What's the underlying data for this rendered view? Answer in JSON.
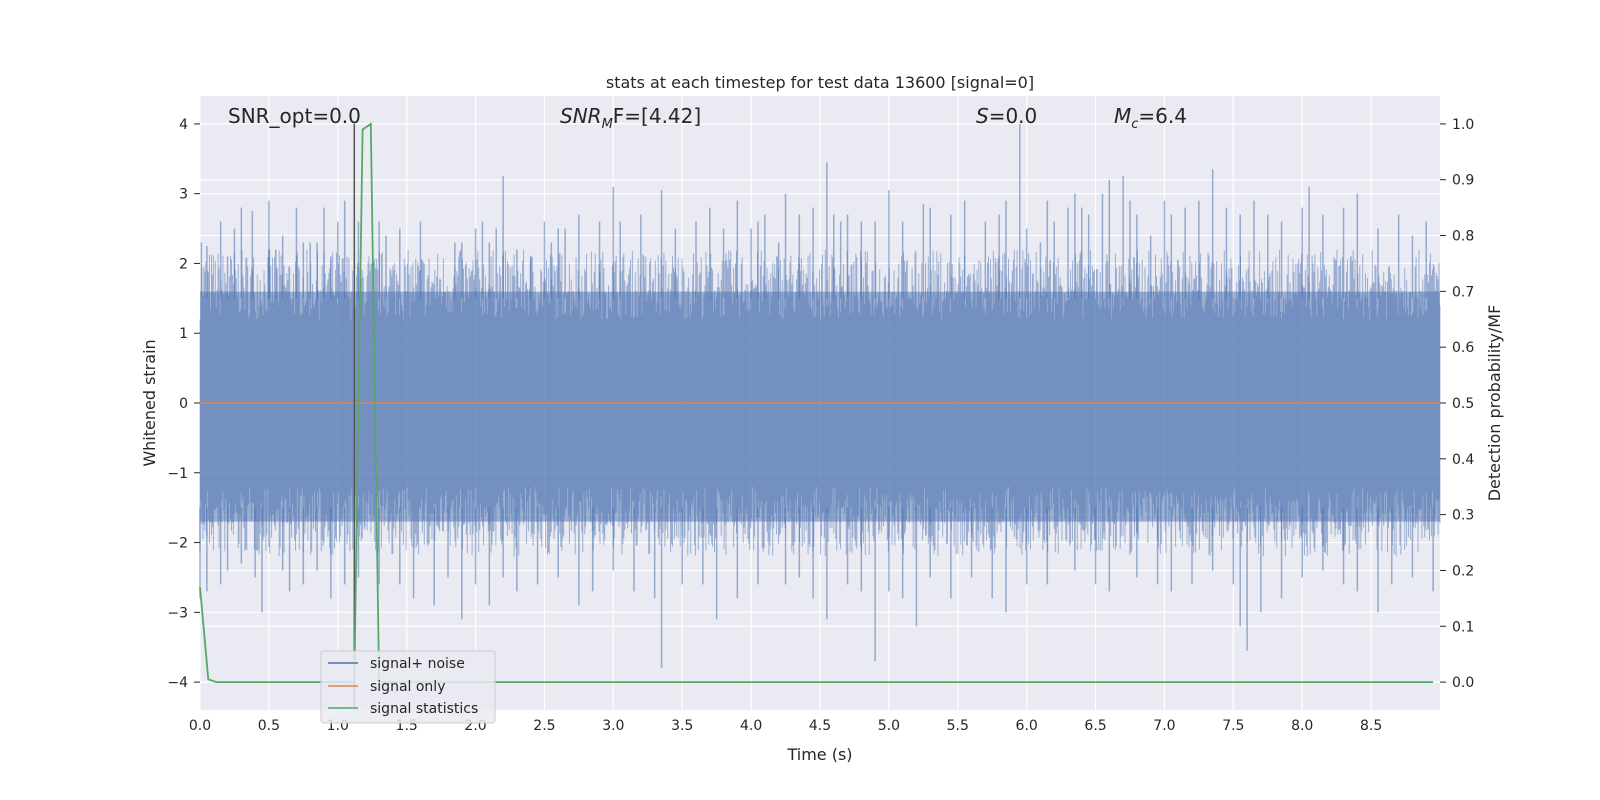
{
  "chart_data": {
    "type": "line",
    "title": "stats at each timestep for test data 13600 [signal=0]",
    "xlabel": "Time (s)",
    "ylabel": "Whitened strain",
    "y2label": "Detection probability/MF",
    "xlim": [
      0.0,
      9.0
    ],
    "ylim": [
      -4.4,
      4.4
    ],
    "y2lim": [
      -0.05,
      1.05
    ],
    "x_ticks": [
      "0.0",
      "0.5",
      "1.0",
      "1.5",
      "2.0",
      "2.5",
      "3.0",
      "3.5",
      "4.0",
      "4.5",
      "5.0",
      "5.5",
      "6.0",
      "6.5",
      "7.0",
      "7.5",
      "8.0",
      "8.5"
    ],
    "y_ticks": [
      "4",
      "3",
      "2",
      "1",
      "0",
      "−1",
      "−2",
      "−3",
      "−4"
    ],
    "y2_ticks": [
      "1.0",
      "0.9",
      "0.8",
      "0.7",
      "0.6",
      "0.5",
      "0.4",
      "0.3",
      "0.2",
      "0.1",
      "0.0"
    ],
    "grid": true,
    "legend_position": "lower-left",
    "annotations": {
      "snr_opt": "SNR_opt=0.0",
      "snr_mf_main": "SNR",
      "snr_mf_sub": "M",
      "snr_mf_rest": "F=[4.42]",
      "s_italic": "S",
      "s_rest": "=0.0",
      "mc_main": "M",
      "mc_sub": "c",
      "mc_rest": "=6.4"
    },
    "series": [
      {
        "name": "signal+ noise",
        "color": "#4c72b0",
        "envelope_description": "noise fluctuates between about -2 and 2, with spikes reaching about 4 and -3.8",
        "spikes_up": [
          [
            0.01,
            2.3
          ],
          [
            0.05,
            2.25
          ],
          [
            0.15,
            2.6
          ],
          [
            0.2,
            2.1
          ],
          [
            0.25,
            2.5
          ],
          [
            0.3,
            2.8
          ],
          [
            0.38,
            2.75
          ],
          [
            0.5,
            2.2
          ],
          [
            0.5,
            2.9
          ],
          [
            0.55,
            2.2
          ],
          [
            0.6,
            2.4
          ],
          [
            0.7,
            2.8
          ],
          [
            0.75,
            2.3
          ],
          [
            0.8,
            2.3
          ],
          [
            0.85,
            2.3
          ],
          [
            0.9,
            2.8
          ],
          [
            0.95,
            2.1
          ],
          [
            1.0,
            2.6
          ],
          [
            1.05,
            2.9
          ],
          [
            1.15,
            2.6
          ],
          [
            1.3,
            2.6
          ],
          [
            1.35,
            2.4
          ],
          [
            1.45,
            2.5
          ],
          [
            1.6,
            2.6
          ],
          [
            1.85,
            2.3
          ],
          [
            1.9,
            2.3
          ],
          [
            2.0,
            2.5
          ],
          [
            2.05,
            2.6
          ],
          [
            2.1,
            2.3
          ],
          [
            2.15,
            2.5
          ],
          [
            2.2,
            3.25
          ],
          [
            2.3,
            2.2
          ],
          [
            2.4,
            2.1
          ],
          [
            2.5,
            2.6
          ],
          [
            2.55,
            2.3
          ],
          [
            2.6,
            2.5
          ],
          [
            2.65,
            2.5
          ],
          [
            2.75,
            2.7
          ],
          [
            2.9,
            2.6
          ],
          [
            3.0,
            3.1
          ],
          [
            3.05,
            2.6
          ],
          [
            3.2,
            2.7
          ],
          [
            3.35,
            3.05
          ],
          [
            3.45,
            2.5
          ],
          [
            3.6,
            2.6
          ],
          [
            3.7,
            2.8
          ],
          [
            3.8,
            2.5
          ],
          [
            3.9,
            2.9
          ],
          [
            4.0,
            2.5
          ],
          [
            4.05,
            2.6
          ],
          [
            4.1,
            2.7
          ],
          [
            4.2,
            2.3
          ],
          [
            4.25,
            3.0
          ],
          [
            4.35,
            2.7
          ],
          [
            4.45,
            2.8
          ],
          [
            4.55,
            3.45
          ],
          [
            4.6,
            2.7
          ],
          [
            4.65,
            2.6
          ],
          [
            4.7,
            2.7
          ],
          [
            4.8,
            2.6
          ],
          [
            4.9,
            2.6
          ],
          [
            5.0,
            3.05
          ],
          [
            5.1,
            2.6
          ],
          [
            5.25,
            2.85
          ],
          [
            5.3,
            2.8
          ],
          [
            5.45,
            2.7
          ],
          [
            5.55,
            2.9
          ],
          [
            5.7,
            2.6
          ],
          [
            5.8,
            2.7
          ],
          [
            5.85,
            2.9
          ],
          [
            5.95,
            4.0
          ],
          [
            6.0,
            2.5
          ],
          [
            6.1,
            2.3
          ],
          [
            6.15,
            2.9
          ],
          [
            6.2,
            2.6
          ],
          [
            6.3,
            2.8
          ],
          [
            6.35,
            3.0
          ],
          [
            6.4,
            2.8
          ],
          [
            6.45,
            2.7
          ],
          [
            6.55,
            3.0
          ],
          [
            6.6,
            3.2
          ],
          [
            6.7,
            3.25
          ],
          [
            6.75,
            2.9
          ],
          [
            6.8,
            2.7
          ],
          [
            6.9,
            2.4
          ],
          [
            7.0,
            2.9
          ],
          [
            7.05,
            2.7
          ],
          [
            7.15,
            2.8
          ],
          [
            7.25,
            2.9
          ],
          [
            7.35,
            3.35
          ],
          [
            7.45,
            2.8
          ],
          [
            7.55,
            2.7
          ],
          [
            7.65,
            2.9
          ],
          [
            7.75,
            2.7
          ],
          [
            7.85,
            2.6
          ],
          [
            8.0,
            2.8
          ],
          [
            8.05,
            3.1
          ],
          [
            8.15,
            2.7
          ],
          [
            8.3,
            2.8
          ],
          [
            8.4,
            3.0
          ],
          [
            8.55,
            2.5
          ],
          [
            8.7,
            2.7
          ],
          [
            8.8,
            2.4
          ],
          [
            8.9,
            2.6
          ]
        ],
        "spikes_down": [
          [
            0.0,
            -2.8
          ],
          [
            0.05,
            -2.7
          ],
          [
            0.15,
            -2.6
          ],
          [
            0.2,
            -2.4
          ],
          [
            0.3,
            -2.3
          ],
          [
            0.4,
            -2.5
          ],
          [
            0.45,
            -3.0
          ],
          [
            0.6,
            -2.4
          ],
          [
            0.65,
            -2.7
          ],
          [
            0.75,
            -2.6
          ],
          [
            0.85,
            -2.4
          ],
          [
            0.95,
            -2.8
          ],
          [
            1.05,
            -2.6
          ],
          [
            1.15,
            -2.5
          ],
          [
            1.3,
            -2.6
          ],
          [
            1.45,
            -2.6
          ],
          [
            1.55,
            -2.8
          ],
          [
            1.7,
            -2.9
          ],
          [
            1.8,
            -2.5
          ],
          [
            1.9,
            -3.1
          ],
          [
            2.0,
            -2.6
          ],
          [
            2.1,
            -2.9
          ],
          [
            2.2,
            -2.5
          ],
          [
            2.3,
            -2.7
          ],
          [
            2.45,
            -2.6
          ],
          [
            2.6,
            -2.5
          ],
          [
            2.75,
            -2.9
          ],
          [
            2.85,
            -2.7
          ],
          [
            3.0,
            -2.4
          ],
          [
            3.15,
            -2.7
          ],
          [
            3.3,
            -2.8
          ],
          [
            3.35,
            -3.8
          ],
          [
            3.5,
            -2.6
          ],
          [
            3.65,
            -2.6
          ],
          [
            3.75,
            -3.1
          ],
          [
            3.9,
            -2.8
          ],
          [
            4.05,
            -2.6
          ],
          [
            4.25,
            -2.6
          ],
          [
            4.35,
            -2.5
          ],
          [
            4.45,
            -2.8
          ],
          [
            4.55,
            -3.1
          ],
          [
            4.7,
            -2.6
          ],
          [
            4.8,
            -2.7
          ],
          [
            4.9,
            -3.7
          ],
          [
            5.0,
            -2.7
          ],
          [
            5.1,
            -2.8
          ],
          [
            5.2,
            -3.2
          ],
          [
            5.3,
            -2.5
          ],
          [
            5.45,
            -2.8
          ],
          [
            5.6,
            -2.5
          ],
          [
            5.75,
            -2.8
          ],
          [
            5.85,
            -3.0
          ],
          [
            6.0,
            -2.6
          ],
          [
            6.15,
            -2.6
          ],
          [
            6.35,
            -2.4
          ],
          [
            6.5,
            -2.6
          ],
          [
            6.6,
            -2.7
          ],
          [
            6.8,
            -2.5
          ],
          [
            6.95,
            -2.6
          ],
          [
            7.05,
            -2.7
          ],
          [
            7.2,
            -2.6
          ],
          [
            7.35,
            -2.4
          ],
          [
            7.5,
            -2.6
          ],
          [
            7.55,
            -3.2
          ],
          [
            7.6,
            -3.55
          ],
          [
            7.7,
            -3.0
          ],
          [
            7.85,
            -2.8
          ],
          [
            8.0,
            -2.5
          ],
          [
            8.15,
            -2.4
          ],
          [
            8.3,
            -2.6
          ],
          [
            8.4,
            -2.7
          ],
          [
            8.55,
            -3.0
          ],
          [
            8.65,
            -2.6
          ],
          [
            8.8,
            -2.5
          ],
          [
            8.95,
            -2.7
          ]
        ]
      },
      {
        "name": "signal only",
        "color": "#dd8452",
        "x": [
          0.0,
          9.0
        ],
        "y": [
          0.0,
          0.0
        ]
      },
      {
        "name": "signal statistics",
        "color": "#55a868",
        "axis": "right",
        "x": [
          0.0,
          0.06,
          0.12,
          1.12,
          1.18,
          1.24,
          1.3,
          8.95
        ],
        "y": [
          0.17,
          0.005,
          0.0,
          0.0,
          0.99,
          1.0,
          0.0,
          0.0
        ]
      }
    ],
    "vertical_line": {
      "x": 1.12,
      "color": "#555555"
    }
  }
}
